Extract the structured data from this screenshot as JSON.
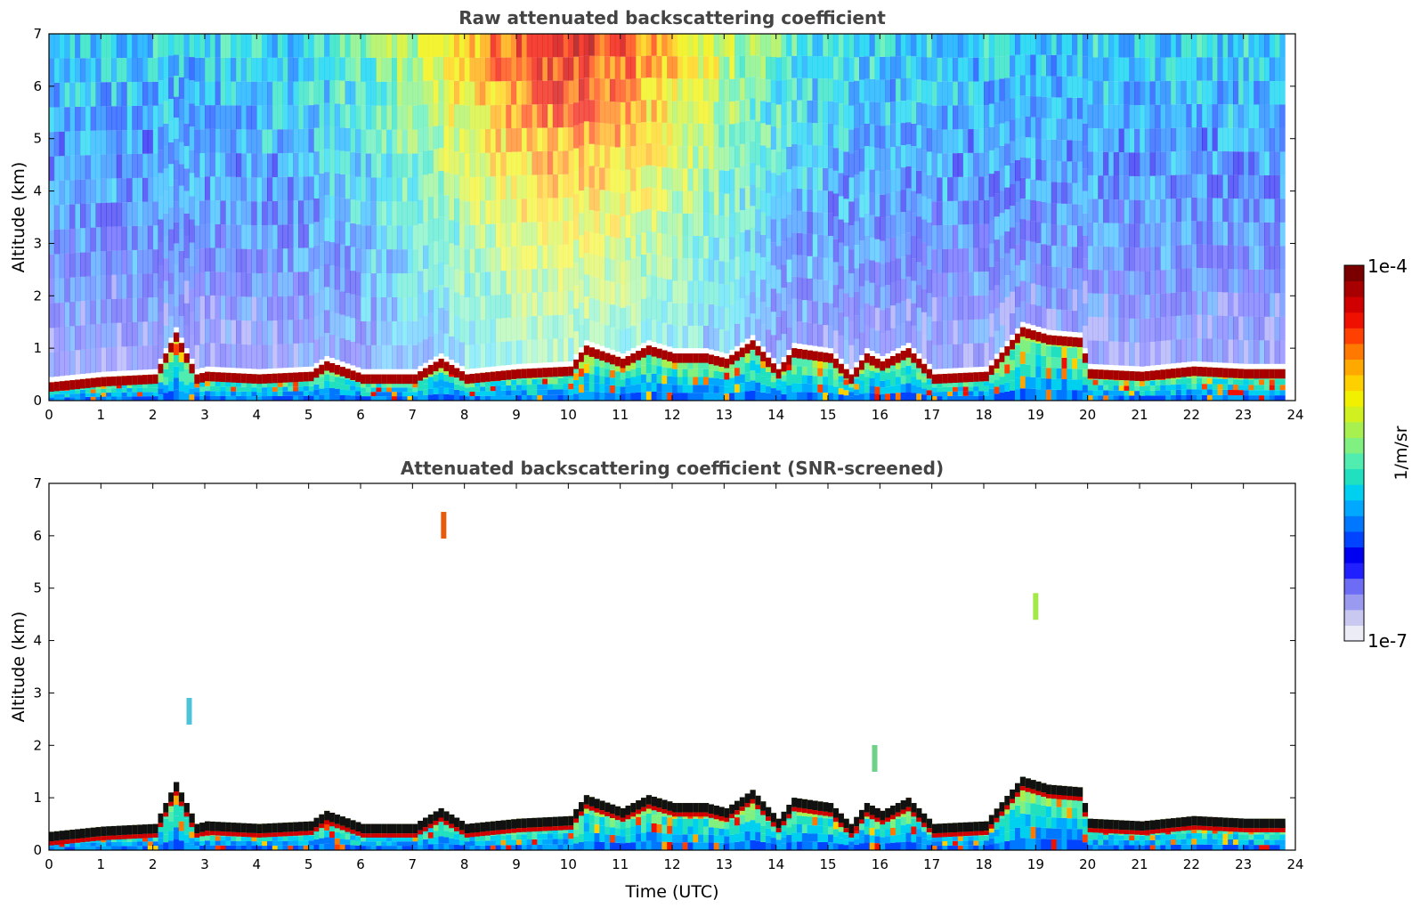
{
  "chart_data": [
    {
      "type": "heatmap",
      "title": "Raw attenuated backscattering coefficient",
      "xlabel": "",
      "ylabel": "Altitude (km)",
      "xlim": [
        0,
        24
      ],
      "ylim": [
        0,
        7
      ],
      "x_ticks": [
        "0",
        "1",
        "2",
        "3",
        "4",
        "5",
        "6",
        "7",
        "8",
        "9",
        "10",
        "11",
        "12",
        "13",
        "14",
        "15",
        "16",
        "17",
        "18",
        "19",
        "20",
        "21",
        "22",
        "23",
        "24"
      ],
      "y_ticks": [
        "0",
        "1",
        "2",
        "3",
        "4",
        "5",
        "6",
        "7"
      ],
      "color_scale": "log",
      "layer_top_km": [
        [
          0,
          0.35
        ],
        [
          1,
          0.45
        ],
        [
          2,
          0.5
        ],
        [
          2.4,
          1.3
        ],
        [
          2.8,
          0.5
        ],
        [
          3,
          0.55
        ],
        [
          4,
          0.5
        ],
        [
          5,
          0.55
        ],
        [
          5.3,
          0.75
        ],
        [
          6,
          0.5
        ],
        [
          7,
          0.5
        ],
        [
          7.5,
          0.8
        ],
        [
          8,
          0.5
        ],
        [
          9,
          0.6
        ],
        [
          10,
          0.65
        ],
        [
          10.3,
          1.05
        ],
        [
          11,
          0.8
        ],
        [
          11.5,
          1.05
        ],
        [
          12,
          0.9
        ],
        [
          12.6,
          0.9
        ],
        [
          13,
          0.8
        ],
        [
          13.5,
          1.15
        ],
        [
          14,
          0.6
        ],
        [
          14.3,
          1.0
        ],
        [
          15,
          0.9
        ],
        [
          15.4,
          0.5
        ],
        [
          15.7,
          0.9
        ],
        [
          16,
          0.75
        ],
        [
          16.5,
          1.0
        ],
        [
          17,
          0.5
        ],
        [
          18,
          0.55
        ],
        [
          18.7,
          1.4
        ],
        [
          19.2,
          1.25
        ],
        [
          19.8,
          1.2
        ],
        [
          20,
          0.6
        ],
        [
          21,
          0.55
        ],
        [
          22,
          0.65
        ],
        [
          23,
          0.6
        ],
        [
          23.8,
          0.6
        ]
      ],
      "aerosol_signal_top_km": 7
    },
    {
      "type": "heatmap",
      "title": "Attenuated backscattering coefficient (SNR-screened)",
      "xlabel": "Time (UTC)",
      "ylabel": "Altitude (km)",
      "xlim": [
        0,
        24
      ],
      "ylim": [
        0,
        7
      ],
      "x_ticks": [
        "0",
        "1",
        "2",
        "3",
        "4",
        "5",
        "6",
        "7",
        "8",
        "9",
        "10",
        "11",
        "12",
        "13",
        "14",
        "15",
        "16",
        "17",
        "18",
        "19",
        "20",
        "21",
        "22",
        "23",
        "24"
      ],
      "y_ticks": [
        "0",
        "1",
        "2",
        "3",
        "4",
        "5",
        "6",
        "7"
      ],
      "color_scale": "log",
      "layer_top_km": [
        [
          0,
          0.35
        ],
        [
          1,
          0.45
        ],
        [
          2,
          0.5
        ],
        [
          2.4,
          1.3
        ],
        [
          2.8,
          0.5
        ],
        [
          3,
          0.55
        ],
        [
          4,
          0.5
        ],
        [
          5,
          0.55
        ],
        [
          5.3,
          0.75
        ],
        [
          6,
          0.5
        ],
        [
          7,
          0.5
        ],
        [
          7.5,
          0.8
        ],
        [
          8,
          0.5
        ],
        [
          9,
          0.6
        ],
        [
          10,
          0.65
        ],
        [
          10.3,
          1.05
        ],
        [
          11,
          0.8
        ],
        [
          11.5,
          1.05
        ],
        [
          12,
          0.9
        ],
        [
          12.6,
          0.9
        ],
        [
          13,
          0.8
        ],
        [
          13.5,
          1.15
        ],
        [
          14,
          0.6
        ],
        [
          14.3,
          1.0
        ],
        [
          15,
          0.9
        ],
        [
          15.4,
          0.5
        ],
        [
          15.7,
          0.9
        ],
        [
          16,
          0.75
        ],
        [
          16.5,
          1.0
        ],
        [
          17,
          0.5
        ],
        [
          18,
          0.55
        ],
        [
          18.7,
          1.4
        ],
        [
          19.2,
          1.25
        ],
        [
          19.8,
          1.2
        ],
        [
          20,
          0.6
        ],
        [
          21,
          0.55
        ],
        [
          22,
          0.65
        ],
        [
          23,
          0.6
        ],
        [
          23.8,
          0.6
        ]
      ],
      "isolated_features": [
        {
          "time_utc": 19.0,
          "altitude_km": 4.6,
          "color": "#a5e84a"
        },
        {
          "time_utc": 7.6,
          "altitude_km": 6.15,
          "color": "#e8590c"
        },
        {
          "time_utc": 15.9,
          "altitude_km": 1.7,
          "color": "#6fd08a"
        },
        {
          "time_utc": 2.7,
          "altitude_km": 2.6,
          "color": "#4cc3d9"
        }
      ]
    }
  ],
  "colorbar": {
    "label": "1/m/sr",
    "max_label": "1e-4",
    "min_label": "1e-7",
    "colors": [
      "#ececf7",
      "#c8c8f0",
      "#9a9af0",
      "#6c6cf5",
      "#2020ff",
      "#0000f0",
      "#0044ff",
      "#0077ff",
      "#00a8ff",
      "#00d0f0",
      "#20e0c0",
      "#50ecb0",
      "#80f080",
      "#a8f050",
      "#d0f020",
      "#f0f000",
      "#ffd000",
      "#ffa800",
      "#ff7800",
      "#ff4000",
      "#f01000",
      "#d00000",
      "#a80000",
      "#7a0000"
    ]
  }
}
